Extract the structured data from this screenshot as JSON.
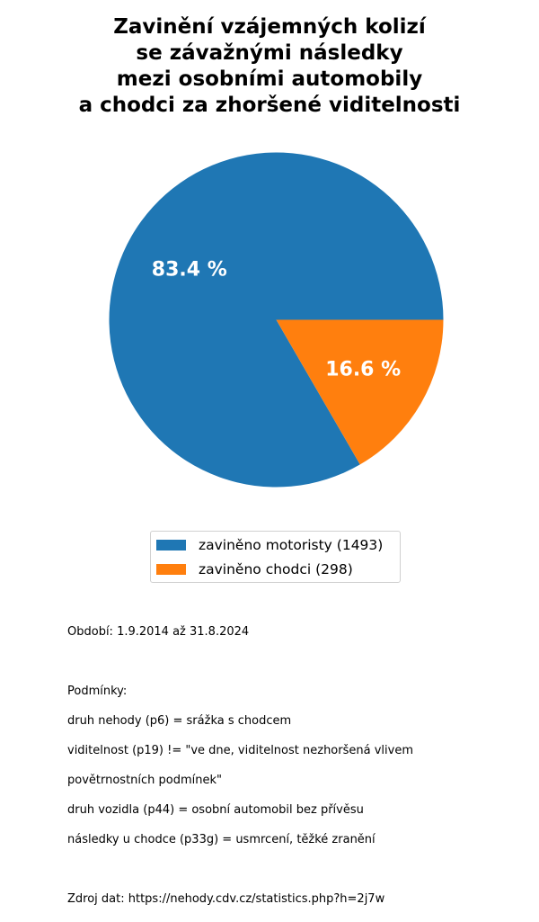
{
  "chart_data": {
    "type": "pie",
    "title_lines": [
      "Zavinění vzájemných kolizí",
      "se závažnými následky",
      "mezi osobními automobily",
      "a chodci za zhoršené viditelnosti"
    ],
    "slices": [
      {
        "label": "zaviněno motoristy (1493)",
        "value": 1493,
        "percent_label": "83.4 %",
        "color": "#1f77b4"
      },
      {
        "label": "zaviněno chodci (298)",
        "value": 298,
        "percent_label": "16.6 %",
        "color": "#ff7f0e"
      }
    ],
    "start_angle_deg": 0,
    "direction": "counterclockwise",
    "legend_placement": "bottom-center"
  },
  "info": {
    "period": "Období: 1.9.2014 až 31.8.2024",
    "conditions_heading": "Podmínky:",
    "conditions": [
      "druh nehody (p6) = srážka s chodcem",
      "viditelnost (p19) != \"ve dne, viditelnost nezhoršená vlivem",
      "povětrnostních podmínek\"",
      "druh vozidla (p44) = osobní automobil bez přívěsu",
      "následky u chodce (p33g) = usmrcení, těžké zranění"
    ],
    "source": "Zdroj dat: https://nehody.cdv.cz/statistics.php?h=2j7w"
  }
}
